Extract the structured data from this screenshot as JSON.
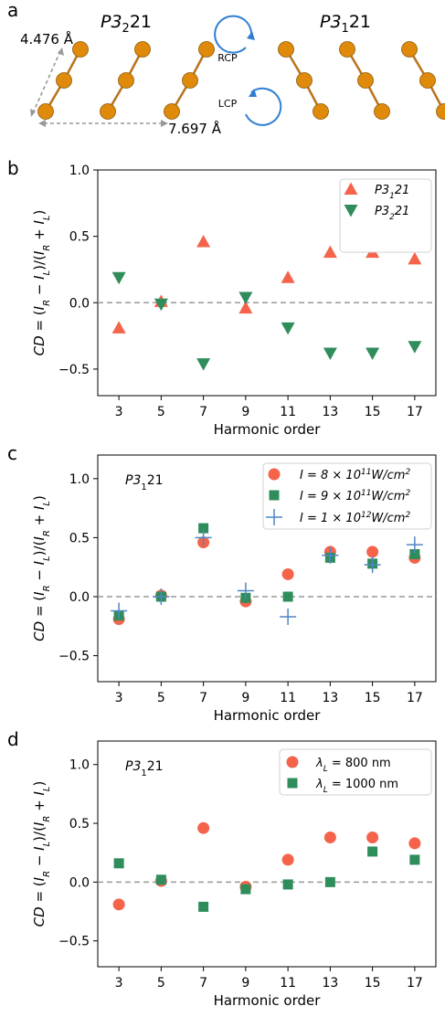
{
  "panel_a": {
    "label": "a",
    "left_title_main": "P3",
    "left_title_sub": "2",
    "left_title_rest": "21",
    "right_title_main": "P3",
    "right_title_sub": "1",
    "right_title_rest": "21",
    "vertical_dim": "4.476 Å",
    "horizontal_dim": "7.697 Å",
    "rcp": "RCP",
    "lcp": "LCP",
    "colors": {
      "atom": "#e08a0c",
      "bond": "#b9731d",
      "arrow": "#2f7fd1",
      "dim": "#999999"
    }
  },
  "chart_data": [
    {
      "type": "scatter",
      "panel": "b",
      "label": "b",
      "x": [
        3,
        5,
        7,
        9,
        11,
        13,
        15,
        17
      ],
      "xticks": [
        "3",
        "5",
        "7",
        "9",
        "11",
        "13",
        "15",
        "17"
      ],
      "xlim": [
        2,
        18
      ],
      "ylim": [
        -0.7,
        1.0
      ],
      "yticks": [
        "1.0",
        "0.5",
        "0.0",
        "−0.5"
      ],
      "xlabel": "Harmonic order",
      "ylabel": "CD = (I_R − I_L)/(I_R + I_L)",
      "zero_line": true,
      "legend_placement": "top-right",
      "series": [
        {
          "name": "P3₁21",
          "marker": "triangle-up",
          "color": "#f4634a",
          "values": [
            -0.19,
            0.01,
            0.46,
            -0.04,
            0.19,
            0.38,
            0.38,
            0.33
          ]
        },
        {
          "name": "P3₂21",
          "marker": "triangle-down",
          "color": "#2f8d5c",
          "values": [
            0.19,
            -0.01,
            -0.46,
            0.04,
            -0.19,
            -0.38,
            -0.38,
            -0.33
          ]
        }
      ]
    },
    {
      "type": "scatter",
      "panel": "c",
      "label": "c",
      "annotation": "P3₁21",
      "x": [
        3,
        5,
        7,
        9,
        11,
        13,
        15,
        17
      ],
      "xticks": [
        "3",
        "5",
        "7",
        "9",
        "11",
        "13",
        "15",
        "17"
      ],
      "xlim": [
        2,
        18
      ],
      "ylim": [
        -0.72,
        1.2
      ],
      "yticks": [
        "1.0",
        "0.5",
        "0.0",
        "−0.5"
      ],
      "xlabel": "Harmonic order",
      "ylabel": "CD = (I_R − I_L)/(I_R + I_L)",
      "zero_line": true,
      "legend_placement": "top-right",
      "series": [
        {
          "name": "I = 8 × 10¹¹W/cm²",
          "marker": "circle",
          "color": "#f4634a",
          "values": [
            -0.19,
            0.01,
            0.46,
            -0.04,
            0.19,
            0.38,
            0.38,
            0.33
          ]
        },
        {
          "name": "I = 9 × 10¹¹W/cm²",
          "marker": "square",
          "color": "#2f8d5c",
          "values": [
            -0.16,
            0.0,
            0.58,
            -0.01,
            0.0,
            0.33,
            0.28,
            0.36
          ]
        },
        {
          "name": "I = 1 × 10¹²W/cm²",
          "marker": "plus",
          "color": "#4f86c6",
          "values": [
            -0.12,
            0.0,
            0.5,
            0.05,
            -0.17,
            0.35,
            0.27,
            0.44
          ]
        }
      ]
    },
    {
      "type": "scatter",
      "panel": "d",
      "label": "d",
      "annotation": "P3₁21",
      "x": [
        3,
        5,
        7,
        9,
        11,
        13,
        15,
        17
      ],
      "xticks": [
        "3",
        "5",
        "7",
        "9",
        "11",
        "13",
        "15",
        "17"
      ],
      "xlim": [
        2,
        18
      ],
      "ylim": [
        -0.72,
        1.2
      ],
      "yticks": [
        "1.0",
        "0.5",
        "0.0",
        "−0.5"
      ],
      "xlabel": "Harmonic order",
      "ylabel": "CD = (I_R − I_L)/(I_R + I_L)",
      "zero_line": true,
      "legend_placement": "top-right",
      "series": [
        {
          "name": "λ_L = 800 nm",
          "marker": "circle",
          "color": "#f4634a",
          "values": [
            -0.19,
            0.01,
            0.46,
            -0.04,
            0.19,
            0.38,
            0.38,
            0.33
          ]
        },
        {
          "name": "λ_L = 1000 nm",
          "marker": "square",
          "color": "#2f8d5c",
          "values": [
            0.16,
            0.02,
            -0.21,
            -0.06,
            -0.02,
            0.0,
            0.26,
            0.19
          ]
        }
      ]
    }
  ]
}
